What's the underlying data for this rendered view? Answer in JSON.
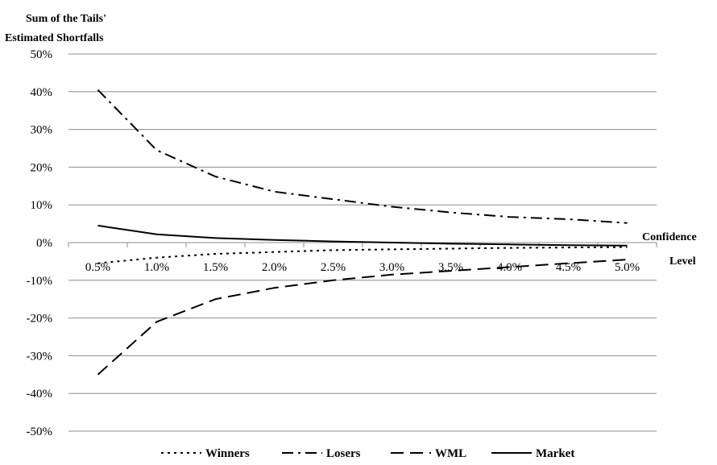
{
  "chart_data": {
    "type": "line",
    "ylabel_line1": "Sum of the Tails'",
    "ylabel_line2": "Estimated Shortfalls",
    "xlabel_line1": "Confidence",
    "xlabel_line2": "Level",
    "categories": [
      "0.5%",
      "1.0%",
      "1.5%",
      "2.0%",
      "2.5%",
      "3.0%",
      "3.5%",
      "4.0%",
      "4.5%",
      "5.0%"
    ],
    "yticks": [
      "50%",
      "40%",
      "30%",
      "20%",
      "10%",
      "0%",
      "-10%",
      "-20%",
      "-30%",
      "-40%",
      "-50%"
    ],
    "ylim": [
      -50,
      50
    ],
    "grid": "horizontal",
    "legend": "bottom",
    "series": [
      {
        "name": "Winners",
        "dash": "dotted",
        "values": [
          -5.5,
          -4.0,
          -3.0,
          -2.5,
          -2.0,
          -1.8,
          -1.6,
          -1.4,
          -1.3,
          -1.2
        ]
      },
      {
        "name": "Losers",
        "dash": "dash-dot",
        "values": [
          40.5,
          24.5,
          17.5,
          13.5,
          11.5,
          9.5,
          8.0,
          6.8,
          6.2,
          5.2
        ]
      },
      {
        "name": "WML",
        "dash": "dashed",
        "values": [
          -35.0,
          -21.0,
          -15.0,
          -12.0,
          -10.0,
          -8.5,
          -7.5,
          -6.5,
          -5.5,
          -4.5
        ]
      },
      {
        "name": "Market",
        "dash": "solid",
        "values": [
          4.5,
          2.2,
          1.2,
          0.7,
          0.3,
          0.0,
          -0.3,
          -0.5,
          -0.7,
          -0.8
        ]
      }
    ]
  }
}
